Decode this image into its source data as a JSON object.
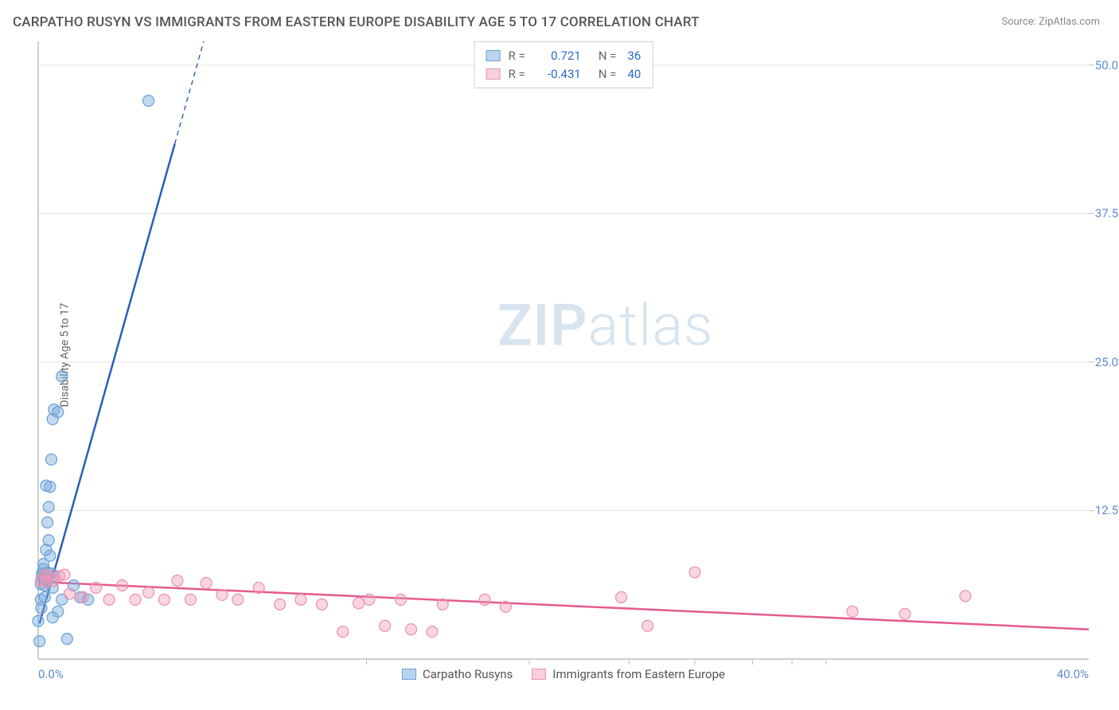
{
  "title": "CARPATHO RUSYN VS IMMIGRANTS FROM EASTERN EUROPE DISABILITY AGE 5 TO 17 CORRELATION CHART",
  "source": "Source: ZipAtlas.com",
  "y_axis_label": "Disability Age 5 to 17",
  "watermark_bold": "ZIP",
  "watermark_rest": "atlas",
  "chart": {
    "type": "scatter",
    "background_color": "#ffffff",
    "grid_color": "#e5e5e5",
    "axis_line_color": "#bfbfbf",
    "tick_color": "#bfbfbf",
    "xlim": [
      0,
      40
    ],
    "ylim": [
      0,
      52
    ],
    "x_ticks": [
      0,
      40
    ],
    "x_tick_labels": [
      "0.0%",
      "40.0%"
    ],
    "x_minor_ticks": [
      12.5,
      18.7,
      22.5,
      25.0,
      27.2,
      28.7,
      30.0
    ],
    "y_ticks": [
      12.5,
      25.0,
      37.5,
      50.0
    ],
    "y_tick_labels": [
      "12.5%",
      "25.0%",
      "37.5%",
      "50.0%"
    ],
    "marker_radius": 7,
    "marker_stroke_width": 1.2,
    "fit_line_width": 2.5,
    "series": [
      {
        "name": "Carpatho Rusyns",
        "color_fill": "rgba(120,170,220,0.45)",
        "color_stroke": "#6aa0d8",
        "fit_color": "#2a5fb3",
        "R": "0.721",
        "N": "36",
        "points": [
          [
            0.0,
            3.2
          ],
          [
            0.1,
            5.0
          ],
          [
            0.1,
            6.3
          ],
          [
            0.15,
            7.0
          ],
          [
            0.15,
            7.2
          ],
          [
            0.12,
            4.3
          ],
          [
            0.2,
            7.6
          ],
          [
            0.2,
            8.0
          ],
          [
            0.25,
            6.2
          ],
          [
            0.25,
            6.7
          ],
          [
            0.25,
            5.2
          ],
          [
            0.35,
            7.3
          ],
          [
            0.3,
            9.2
          ],
          [
            0.35,
            11.5
          ],
          [
            0.4,
            12.8
          ],
          [
            0.4,
            10.0
          ],
          [
            0.45,
            8.7
          ],
          [
            0.5,
            7.2
          ],
          [
            0.55,
            6.0
          ],
          [
            0.6,
            7.0
          ],
          [
            0.55,
            3.5
          ],
          [
            0.75,
            4.0
          ],
          [
            0.9,
            5.0
          ],
          [
            0.45,
            14.5
          ],
          [
            0.3,
            14.6
          ],
          [
            0.5,
            16.8
          ],
          [
            0.55,
            20.2
          ],
          [
            0.6,
            21.0
          ],
          [
            0.75,
            20.8
          ],
          [
            0.9,
            23.8
          ],
          [
            4.2,
            47.0
          ],
          [
            0.05,
            1.5
          ],
          [
            1.1,
            1.7
          ],
          [
            1.35,
            6.2
          ],
          [
            1.6,
            5.2
          ],
          [
            1.9,
            5.0
          ]
        ],
        "fit": {
          "x1": 0.05,
          "y1": 3.0,
          "x2": 6.3,
          "y2": 52.0,
          "dash_after_x": 5.2
        }
      },
      {
        "name": "Immigrants from Eastern Europe",
        "color_fill": "rgba(240,150,180,0.40)",
        "color_stroke": "#e891b0",
        "fit_color": "#e45b8d",
        "R": "-0.431",
        "N": "40",
        "points": [
          [
            0.3,
            6.5
          ],
          [
            0.8,
            7.0
          ],
          [
            1.2,
            5.5
          ],
          [
            1.7,
            5.2
          ],
          [
            2.2,
            6.0
          ],
          [
            2.7,
            5.0
          ],
          [
            3.2,
            6.2
          ],
          [
            3.7,
            5.0
          ],
          [
            4.2,
            5.6
          ],
          [
            4.8,
            5.0
          ],
          [
            5.3,
            6.6
          ],
          [
            5.8,
            5.0
          ],
          [
            6.4,
            6.4
          ],
          [
            7.0,
            5.4
          ],
          [
            7.6,
            5.0
          ],
          [
            8.4,
            6.0
          ],
          [
            9.2,
            4.6
          ],
          [
            10.0,
            5.0
          ],
          [
            10.8,
            4.6
          ],
          [
            11.6,
            2.3
          ],
          [
            12.2,
            4.7
          ],
          [
            12.6,
            5.0
          ],
          [
            13.2,
            2.8
          ],
          [
            13.8,
            5.0
          ],
          [
            14.2,
            2.5
          ],
          [
            15.0,
            2.3
          ],
          [
            15.4,
            4.6
          ],
          [
            17.0,
            5.0
          ],
          [
            17.8,
            4.4
          ],
          [
            22.2,
            5.2
          ],
          [
            23.2,
            2.8
          ],
          [
            25.0,
            7.3
          ],
          [
            31.0,
            4.0
          ],
          [
            33.0,
            3.8
          ],
          [
            35.3,
            5.3
          ],
          [
            0.6,
            6.6
          ],
          [
            1.0,
            7.1
          ],
          [
            0.4,
            7.0
          ],
          [
            0.25,
            7.1
          ],
          [
            0.1,
            6.6
          ]
        ],
        "fit": {
          "x1": 0.0,
          "y1": 6.5,
          "x2": 40.0,
          "y2": 2.5
        }
      }
    ]
  },
  "legend_top": [
    {
      "swatch": "blue",
      "R": "0.721",
      "N": "36"
    },
    {
      "swatch": "pink",
      "R": "-0.431",
      "N": "40"
    }
  ],
  "legend_bottom": [
    {
      "swatch": "blue",
      "label": "Carpatho Rusyns"
    },
    {
      "swatch": "pink",
      "label": "Immigrants from Eastern Europe"
    }
  ],
  "labels": {
    "R": "R =",
    "N": "N ="
  }
}
